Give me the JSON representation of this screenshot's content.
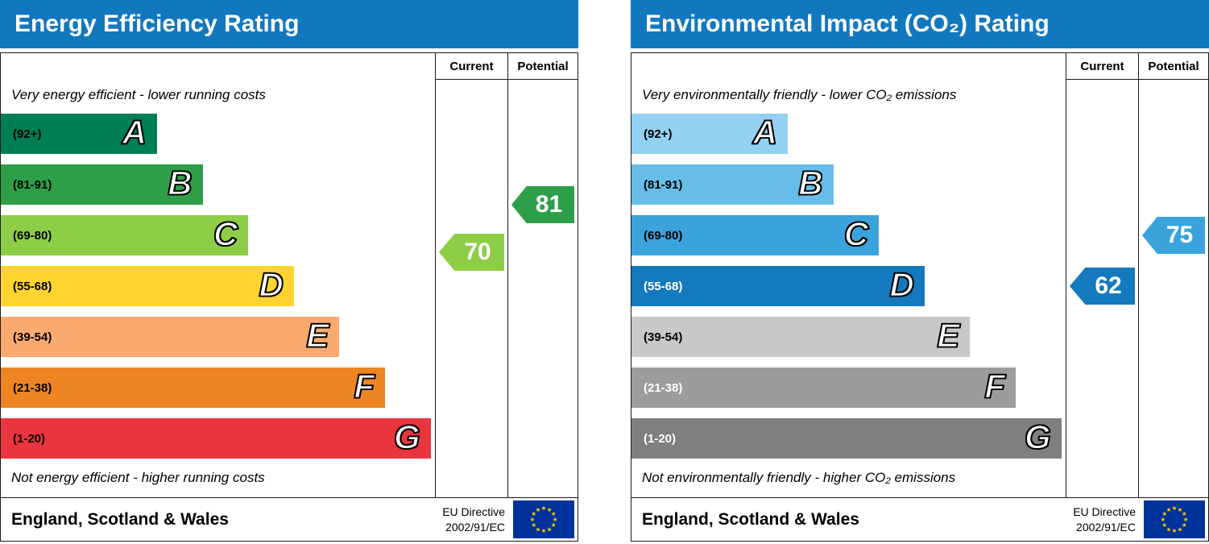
{
  "panels": [
    {
      "title": "Energy Efficiency Rating",
      "header_color": "#1278be",
      "columns": {
        "current": "Current",
        "potential": "Potential"
      },
      "top_note": "Very energy efficient - lower running costs",
      "bottom_note": "Not energy efficient - higher running costs",
      "bands": [
        {
          "letter": "A",
          "range": "(92+)",
          "min": 92,
          "max": 100,
          "color": "#007f56",
          "width_pct": 36,
          "label_color": "#000000"
        },
        {
          "letter": "B",
          "range": "(81-91)",
          "min": 81,
          "max": 91,
          "color": "#2e9f49",
          "width_pct": 46.5,
          "label_color": "#000000"
        },
        {
          "letter": "C",
          "range": "(69-80)",
          "min": 69,
          "max": 80,
          "color": "#8dce46",
          "width_pct": 57,
          "label_color": "#000000"
        },
        {
          "letter": "D",
          "range": "(55-68)",
          "min": 55,
          "max": 68,
          "color": "#ffd42f",
          "width_pct": 67.5,
          "label_color": "#000000"
        },
        {
          "letter": "E",
          "range": "(39-54)",
          "min": 39,
          "max": 54,
          "color": "#fbaa6f",
          "width_pct": 78,
          "label_color": "#000000"
        },
        {
          "letter": "F",
          "range": "(21-38)",
          "min": 21,
          "max": 38,
          "color": "#ee8523",
          "width_pct": 88.5,
          "label_color": "#000000"
        },
        {
          "letter": "G",
          "range": "(1-20)",
          "min": 1,
          "max": 20,
          "color": "#e9353d",
          "width_pct": 99,
          "label_color": "#000000"
        }
      ],
      "current": {
        "value": 70,
        "color": "#8dce46",
        "band_index": 2
      },
      "potential": {
        "value": 81,
        "color": "#2e9f49",
        "band_index": 1
      },
      "footer": {
        "region": "England, Scotland & Wales",
        "directive_line1": "EU Directive",
        "directive_line2": "2002/91/EC"
      }
    },
    {
      "title": "Environmental Impact (CO₂) Rating",
      "header_color": "#1278be",
      "columns": {
        "current": "Current",
        "potential": "Potential"
      },
      "top_note": "Very environmentally friendly - lower CO₂ emissions",
      "bottom_note": "Not environmentally friendly - higher CO₂ emissions",
      "bands": [
        {
          "letter": "A",
          "range": "(92+)",
          "min": 92,
          "max": 100,
          "color": "#92d1f0",
          "width_pct": 36,
          "label_color": "#000000"
        },
        {
          "letter": "B",
          "range": "(81-91)",
          "min": 81,
          "max": 91,
          "color": "#68bde8",
          "width_pct": 46.5,
          "label_color": "#000000"
        },
        {
          "letter": "C",
          "range": "(69-80)",
          "min": 69,
          "max": 80,
          "color": "#3ba3dc",
          "width_pct": 57,
          "label_color": "#000000"
        },
        {
          "letter": "D",
          "range": "(55-68)",
          "min": 55,
          "max": 68,
          "color": "#1579bd",
          "width_pct": 67.5,
          "label_color": "#ffffff"
        },
        {
          "letter": "E",
          "range": "(39-54)",
          "min": 39,
          "max": 54,
          "color": "#c8c8c8",
          "width_pct": 78,
          "label_color": "#000000"
        },
        {
          "letter": "F",
          "range": "(21-38)",
          "min": 21,
          "max": 38,
          "color": "#9c9c9c",
          "width_pct": 88.5,
          "label_color": "#ffffff"
        },
        {
          "letter": "G",
          "range": "(1-20)",
          "min": 1,
          "max": 20,
          "color": "#7f7f7f",
          "width_pct": 99,
          "label_color": "#ffffff"
        }
      ],
      "current": {
        "value": 62,
        "color": "#1579bd",
        "band_index": 3
      },
      "potential": {
        "value": 75,
        "color": "#3ba3dc",
        "band_index": 2
      },
      "footer": {
        "region": "England, Scotland & Wales",
        "directive_line1": "EU Directive",
        "directive_line2": "2002/91/EC"
      }
    }
  ],
  "flag_colors": {
    "field": "#003399",
    "stars": "#ffcc00"
  },
  "chart_data": [
    {
      "type": "bar",
      "title": "Energy Efficiency Rating",
      "categories": [
        "A",
        "B",
        "C",
        "D",
        "E",
        "F",
        "G"
      ],
      "band_ranges": [
        "92+",
        "81-91",
        "69-80",
        "55-68",
        "39-54",
        "21-38",
        "1-20"
      ],
      "series": [
        {
          "name": "Current",
          "value": 70,
          "band": "C"
        },
        {
          "name": "Potential",
          "value": 81,
          "band": "B"
        }
      ],
      "xlabel": "",
      "ylabel": "",
      "ylim": [
        1,
        100
      ],
      "top_annotation": "Very energy efficient - lower running costs",
      "bottom_annotation": "Not energy efficient - higher running costs",
      "region": "England, Scotland & Wales",
      "directive": "EU Directive 2002/91/EC"
    },
    {
      "type": "bar",
      "title": "Environmental Impact (CO₂) Rating",
      "categories": [
        "A",
        "B",
        "C",
        "D",
        "E",
        "F",
        "G"
      ],
      "band_ranges": [
        "92+",
        "81-91",
        "69-80",
        "55-68",
        "39-54",
        "21-38",
        "1-20"
      ],
      "series": [
        {
          "name": "Current",
          "value": 62,
          "band": "D"
        },
        {
          "name": "Potential",
          "value": 75,
          "band": "C"
        }
      ],
      "xlabel": "",
      "ylabel": "",
      "ylim": [
        1,
        100
      ],
      "top_annotation": "Very environmentally friendly - lower CO₂ emissions",
      "bottom_annotation": "Not environmentally friendly - higher CO₂ emissions",
      "region": "England, Scotland & Wales",
      "directive": "EU Directive 2002/91/EC"
    }
  ]
}
